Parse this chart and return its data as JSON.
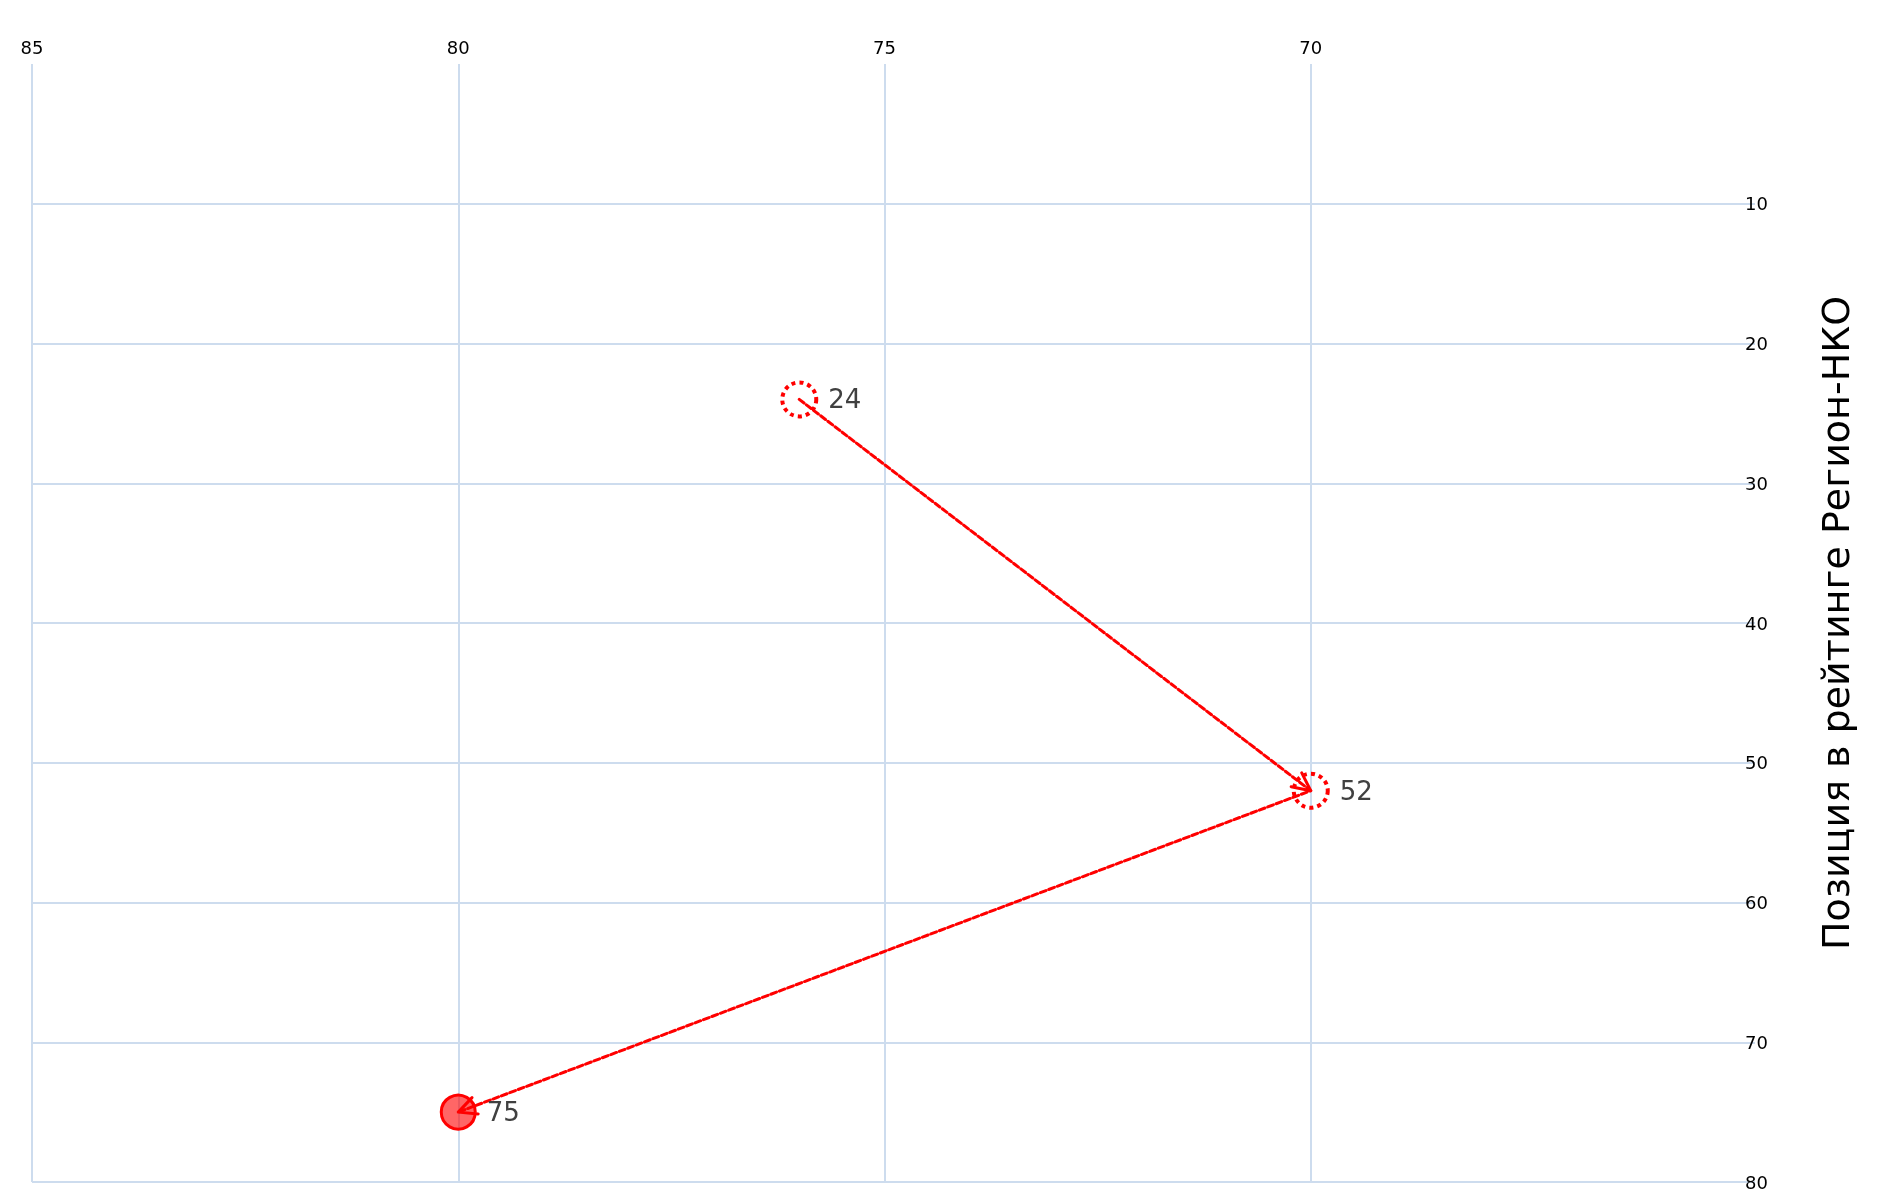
{
  "chart_data": {
    "type": "line",
    "ylabel": "Позиция в рейтинге Регион-НКО",
    "x": [
      76,
      70,
      80
    ],
    "series": [
      {
        "color": "#ff0000",
        "values": [
          24,
          52,
          75
        ]
      }
    ],
    "xlim": [
      85,
      65
    ],
    "xticks": [
      85,
      80,
      75,
      70
    ],
    "ylim": [
      80,
      0
    ],
    "yticks": [
      10,
      20,
      30,
      40,
      50,
      60,
      70,
      80
    ],
    "grid": true,
    "data_labels": true,
    "marker": "circle",
    "line_style": "dashed"
  }
}
